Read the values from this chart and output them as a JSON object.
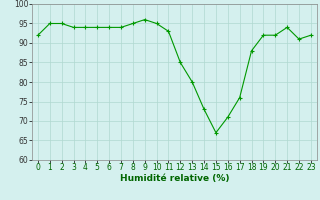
{
  "x": [
    0,
    1,
    2,
    3,
    4,
    5,
    6,
    7,
    8,
    9,
    10,
    11,
    12,
    13,
    14,
    15,
    16,
    17,
    18,
    19,
    20,
    21,
    22,
    23
  ],
  "y": [
    92,
    95,
    95,
    94,
    94,
    94,
    94,
    94,
    95,
    96,
    95,
    93,
    85,
    80,
    73,
    67,
    71,
    76,
    88,
    92,
    92,
    94,
    91,
    92
  ],
  "line_color": "#009900",
  "marker": "+",
  "marker_size": 3,
  "marker_lw": 0.8,
  "bg_color": "#d4f0ee",
  "grid_color": "#b0d8d0",
  "xlabel": "Humidité relative (%)",
  "xlabel_color": "#006600",
  "ylim": [
    60,
    100
  ],
  "yticks": [
    60,
    65,
    70,
    75,
    80,
    85,
    90,
    95,
    100
  ],
  "xticks": [
    0,
    1,
    2,
    3,
    4,
    5,
    6,
    7,
    8,
    9,
    10,
    11,
    12,
    13,
    14,
    15,
    16,
    17,
    18,
    19,
    20,
    21,
    22,
    23
  ],
  "tick_fontsize": 5.5,
  "xlabel_fontsize": 6.5,
  "linewidth": 0.8
}
